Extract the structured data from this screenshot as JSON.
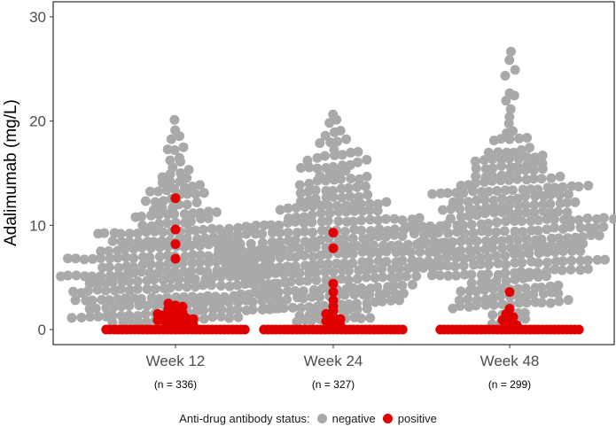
{
  "chart_data": {
    "type": "scatter",
    "ylabel": "Adalimumab (mg/L)",
    "ylim": [
      0,
      30
    ],
    "y_ticks": [
      "0",
      "10",
      "20",
      "30"
    ],
    "grid": false,
    "legend_position": "bottom",
    "categories": [
      "Week 12",
      "Week 24",
      "Week 48"
    ],
    "sample_sizes": [
      "(n = 336)",
      "(n = 327)",
      "(n = 299)"
    ],
    "legend": {
      "title": "Anti-drug antibody status:",
      "entries": [
        {
          "label": "negative",
          "color": "#a9a9a9"
        },
        {
          "label": "positive",
          "color": "#e00000"
        }
      ]
    },
    "groups": [
      {
        "name": "Week 12",
        "n": 336,
        "series": [
          {
            "name": "negative",
            "color": "#a9a9a9",
            "density": [
              [
                0,
                0
              ],
              [
                1,
                26
              ],
              [
                2,
                30
              ],
              [
                3,
                32
              ],
              [
                4,
                31
              ],
              [
                5,
                30
              ],
              [
                6,
                33
              ],
              [
                7,
                30
              ],
              [
                8,
                26
              ],
              [
                9,
                20
              ],
              [
                10,
                16
              ],
              [
                11,
                13
              ],
              [
                12,
                10
              ],
              [
                13,
                8
              ],
              [
                14,
                6
              ],
              [
                15,
                5
              ],
              [
                16,
                4
              ],
              [
                17,
                3
              ],
              [
                18,
                2
              ],
              [
                19,
                1
              ],
              [
                20,
                1
              ]
            ],
            "max": 20.3
          },
          {
            "name": "positive",
            "color": "#e00000",
            "values": [
              12.6,
              9.6,
              8.2,
              6.8,
              2.5,
              2.3,
              2.2,
              2.0,
              1.8,
              1.6,
              1.5,
              1.4,
              1.3,
              1.2,
              1.1,
              1.0,
              0.9,
              0.8,
              0.7,
              0.6,
              0.5,
              0.4
            ],
            "zero_count": 35
          }
        ]
      },
      {
        "name": "Week 24",
        "n": 327,
        "series": [
          {
            "name": "negative",
            "color": "#a9a9a9",
            "density": [
              [
                0,
                0
              ],
              [
                1,
                12
              ],
              [
                2,
                18
              ],
              [
                3,
                22
              ],
              [
                4,
                26
              ],
              [
                5,
                28
              ],
              [
                6,
                32
              ],
              [
                7,
                33
              ],
              [
                8,
                34
              ],
              [
                9,
                30
              ],
              [
                10,
                26
              ],
              [
                11,
                20
              ],
              [
                12,
                16
              ],
              [
                13,
                13
              ],
              [
                14,
                11
              ],
              [
                15,
                9
              ],
              [
                16,
                7
              ],
              [
                17,
                6
              ],
              [
                18,
                4
              ],
              [
                19,
                3
              ],
              [
                20,
                2
              ],
              [
                21,
                1
              ]
            ],
            "max": 21.0
          },
          {
            "name": "positive",
            "color": "#e00000",
            "values": [
              9.3,
              7.8,
              4.4,
              3.6,
              2.8,
              2.2,
              1.8,
              1.5,
              1.2,
              1.0,
              0.8,
              0.6,
              0.4
            ],
            "zero_count": 35
          }
        ]
      },
      {
        "name": "Week 48",
        "n": 299,
        "series": [
          {
            "name": "negative",
            "color": "#a9a9a9",
            "density": [
              [
                0,
                0
              ],
              [
                1,
                8
              ],
              [
                2,
                12
              ],
              [
                3,
                15
              ],
              [
                4,
                18
              ],
              [
                5,
                20
              ],
              [
                6,
                24
              ],
              [
                7,
                26
              ],
              [
                8,
                28
              ],
              [
                9,
                28
              ],
              [
                10,
                27
              ],
              [
                11,
                25
              ],
              [
                12,
                24
              ],
              [
                13,
                20
              ],
              [
                14,
                17
              ],
              [
                15,
                15
              ],
              [
                16,
                12
              ],
              [
                17,
                9
              ],
              [
                18,
                5
              ],
              [
                19,
                2
              ],
              [
                20,
                2
              ],
              [
                21,
                1
              ],
              [
                22,
                2
              ],
              [
                23,
                1
              ],
              [
                24,
                1
              ],
              [
                25,
                1
              ],
              [
                26,
                1
              ],
              [
                27,
                1
              ]
            ],
            "max": 27.4
          },
          {
            "name": "positive",
            "color": "#e00000",
            "values": [
              3.6,
              2.0,
              1.5,
              1.2,
              0.9,
              0.6,
              0.4
            ],
            "zero_count": 35
          }
        ]
      }
    ]
  }
}
